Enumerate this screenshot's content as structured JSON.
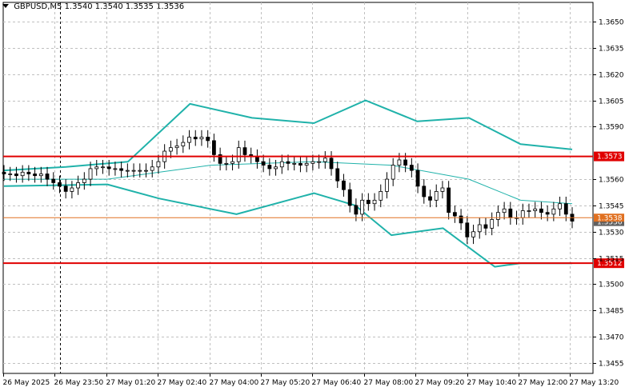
{
  "header": {
    "symbol": "GBPUSD,M5",
    "ohlc": "1.3540 1.3540 1.3535 1.3536"
  },
  "colors": {
    "background": "#ffffff",
    "grid": "#c0c0c0",
    "candle": "#000000",
    "bollinger": "#20b2aa",
    "resistance": "#e00000",
    "bid_line": "#e07020",
    "price_badge": "#606060"
  },
  "chart_data": {
    "type": "candlestick",
    "title": "",
    "y_ticks": [
      "1.3650",
      "1.3635",
      "1.3620",
      "1.3605",
      "1.3590",
      "1.3560",
      "1.3545",
      "1.3530",
      "1.3515",
      "1.3500",
      "1.3485",
      "1.3470",
      "1.3455"
    ],
    "ylim": [
      1.345,
      1.3665
    ],
    "x_ticks": [
      "26 May 2025",
      "26 May 23:50",
      "27 May 01:20",
      "27 May 02:40",
      "27 May 04:00",
      "27 May 05:20",
      "27 May 06:40",
      "27 May 08:00",
      "27 May 09:20",
      "27 May 10:40",
      "27 May 12:00",
      "27 May 13:20"
    ],
    "grid": true,
    "price_levels": [
      {
        "label": "1.3573",
        "value": 1.3573,
        "kind": "resistance"
      },
      {
        "label": "1.3512",
        "value": 1.3512,
        "kind": "support"
      },
      {
        "label": "1.3536",
        "value": 1.3536,
        "kind": "current"
      },
      {
        "label": "1.3538",
        "value": 1.3538,
        "kind": "bid"
      }
    ],
    "close_series": [
      1.3563,
      1.3563,
      1.3562,
      1.3564,
      1.3563,
      1.3562,
      1.3563,
      1.356,
      1.3558,
      1.3556,
      1.3553,
      1.3555,
      1.3558,
      1.356,
      1.3566,
      1.3567,
      1.3567,
      1.3566,
      1.3566,
      1.3565,
      1.3565,
      1.3565,
      1.3565,
      1.3565,
      1.3567,
      1.357,
      1.3576,
      1.3578,
      1.3579,
      1.3581,
      1.3584,
      1.3583,
      1.3584,
      1.3582,
      1.3574,
      1.3569,
      1.3569,
      1.357,
      1.3578,
      1.3574,
      1.3573,
      1.357,
      1.3568,
      1.3566,
      1.3567,
      1.357,
      1.3569,
      1.3569,
      1.3568,
      1.3569,
      1.357,
      1.357,
      1.3572,
      1.3566,
      1.3559,
      1.3554,
      1.3545,
      1.354,
      1.3548,
      1.3546,
      1.3548,
      1.3553,
      1.356,
      1.3568,
      1.3571,
      1.3568,
      1.3565,
      1.3556,
      1.355,
      1.3548,
      1.3553,
      1.3555,
      1.3541,
      1.3539,
      1.3535,
      1.3527,
      1.353,
      1.3534,
      1.3532,
      1.3537,
      1.3541,
      1.3543,
      1.3538,
      1.3538,
      1.3542,
      1.3542,
      1.3543,
      1.3541,
      1.354,
      1.3543,
      1.3546,
      1.354,
      1.3536
    ],
    "bb_upper": [
      [
        0,
        1.3565
      ],
      [
        12,
        1.3567
      ],
      [
        24,
        1.357
      ],
      [
        36,
        1.3603
      ],
      [
        48,
        1.3595
      ],
      [
        60,
        1.3592
      ],
      [
        70,
        1.3605
      ],
      [
        80,
        1.3593
      ],
      [
        90,
        1.3595
      ],
      [
        100,
        1.358
      ],
      [
        110,
        1.3577
      ]
    ],
    "bb_middle": [
      [
        0,
        1.356
      ],
      [
        20,
        1.356
      ],
      [
        40,
        1.3568
      ],
      [
        60,
        1.357
      ],
      [
        75,
        1.3568
      ],
      [
        90,
        1.356
      ],
      [
        100,
        1.3548
      ],
      [
        110,
        1.3546
      ]
    ],
    "bb_lower": [
      [
        0,
        1.3556
      ],
      [
        20,
        1.3557
      ],
      [
        30,
        1.3549
      ],
      [
        45,
        1.354
      ],
      [
        60,
        1.3552
      ],
      [
        68,
        1.3545
      ],
      [
        75,
        1.3528
      ],
      [
        85,
        1.3532
      ],
      [
        95,
        1.351
      ],
      [
        100,
        1.3512
      ],
      [
        110,
        1.3512
      ]
    ]
  }
}
